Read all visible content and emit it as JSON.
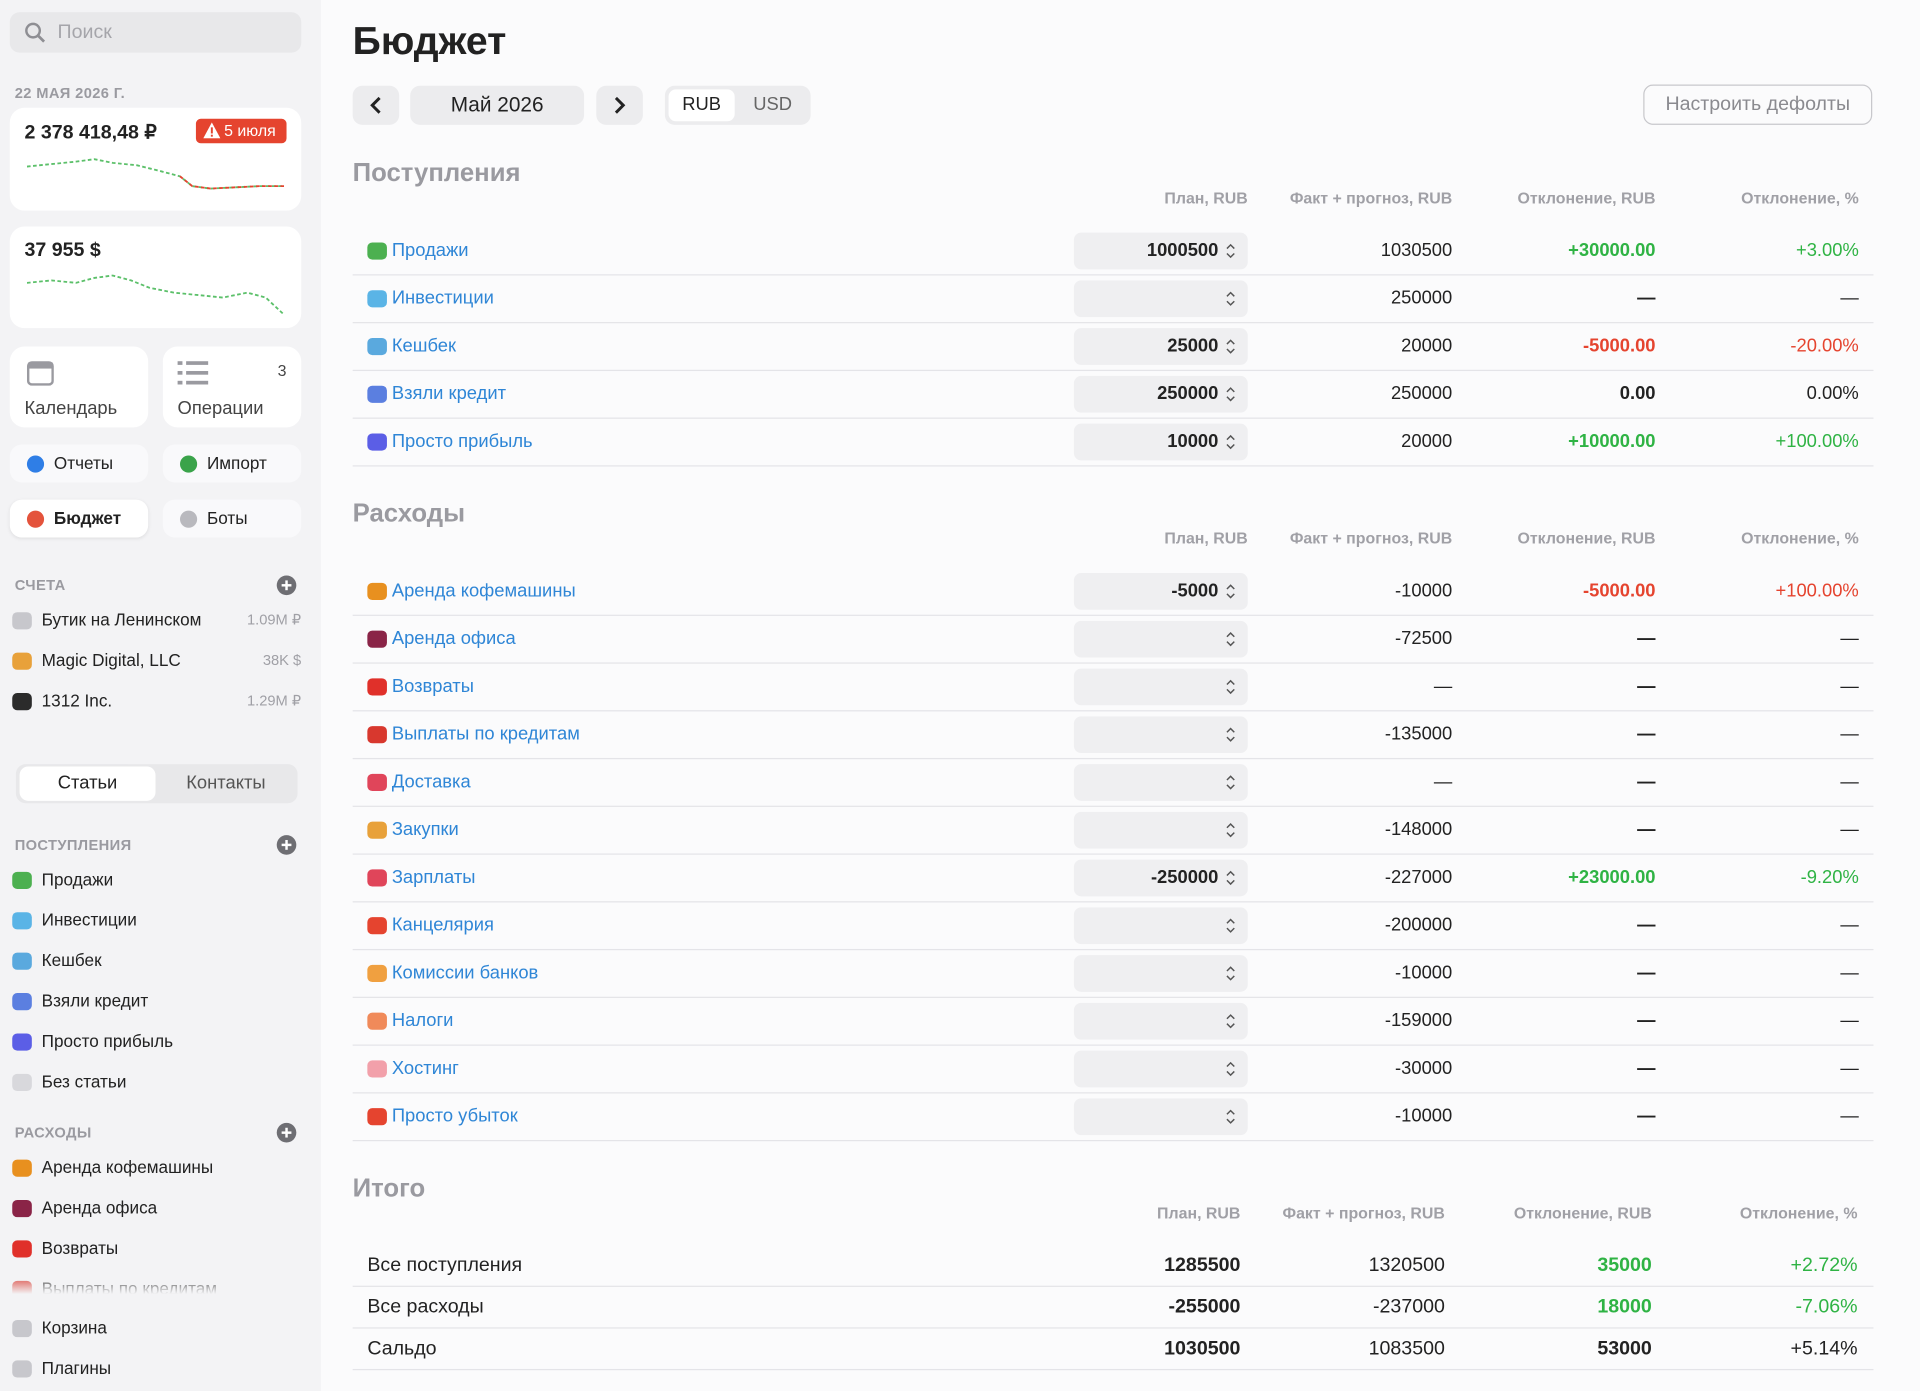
{
  "sidebar": {
    "search_placeholder": "Поиск",
    "date": "22 МАЯ 2026 Г.",
    "balance_rub": {
      "amount": "2 378 418,48 ₽",
      "badge": "5 июля"
    },
    "balance_usd": {
      "amount": "37 955 $"
    },
    "tiles": [
      {
        "label": "Календарь"
      },
      {
        "label": "Операции",
        "count": 3
      }
    ],
    "buttons": [
      {
        "label": "Отчеты",
        "color": "#2f7ee6"
      },
      {
        "label": "Импорт",
        "color": "#3aa34a"
      },
      {
        "label": "Бюджет",
        "color": "#e4533c",
        "active": true
      },
      {
        "label": "Боты",
        "color": "#b9b9be"
      }
    ],
    "accounts_title": "СЧЕТА",
    "accounts": [
      {
        "name": "Бутик на Ленинском",
        "amount": "1.09M ₽",
        "color": "#c7c7cc"
      },
      {
        "name": "Magic Digital, LLC",
        "amount": "38K $",
        "color": "#e8a13a"
      },
      {
        "name": "1312 Inc.",
        "amount": "1.29M ₽",
        "color": "#2b2b2b"
      }
    ],
    "tabs": [
      "Статьи",
      "Контакты"
    ],
    "income_title": "ПОСТУПЛЕНИЯ",
    "income_items": [
      {
        "name": "Продажи",
        "color": "#4cb050"
      },
      {
        "name": "Инвестиции",
        "color": "#5ab4e6"
      },
      {
        "name": "Кешбек",
        "color": "#5aa9de"
      },
      {
        "name": "Взяли кредит",
        "color": "#5b7fe0"
      },
      {
        "name": "Просто прибыль",
        "color": "#5b5ee6"
      },
      {
        "name": "Без статьи",
        "color": "#d8d8dc"
      }
    ],
    "expense_title": "РАСХОДЫ",
    "expense_items": [
      {
        "name": "Аренда кофемашины",
        "color": "#e8901f"
      },
      {
        "name": "Аренда офиса",
        "color": "#8a2447"
      },
      {
        "name": "Возвраты",
        "color": "#e0302a"
      },
      {
        "name": "Выплаты по кредитам",
        "color": "#d8382e"
      }
    ],
    "footer": [
      {
        "name": "Корзина",
        "color": "#c7c7cc"
      },
      {
        "name": "Плагины",
        "color": "#c7c7cc"
      }
    ]
  },
  "main": {
    "title": "Бюджет",
    "month": "Май 2026",
    "currencies": [
      "RUB",
      "USD"
    ],
    "defaults_button": "Настроить дефолты",
    "income": {
      "title": "Поступления",
      "headers": [
        "План, RUB",
        "Факт + прогноз, RUB",
        "Отклонение, RUB",
        "Отклонение, %"
      ],
      "rows": [
        {
          "name": "Продажи",
          "color": "#4cb050",
          "plan": 1000500,
          "fact": 1030500,
          "dev": "+30000.00",
          "dev_pct": "+3.00%",
          "dev_color": "#2fb344"
        },
        {
          "name": "Инвестиции",
          "color": "#5ab4e6",
          "plan": null,
          "fact": 250000,
          "dev": "—",
          "dev_pct": "—",
          "dev_color": "#222222"
        },
        {
          "name": "Кешбек",
          "color": "#5aa9de",
          "plan": 25000,
          "fact": 20000,
          "dev": "-5000.00",
          "dev_pct": "-20.00%",
          "dev_color": "#e5442f"
        },
        {
          "name": "Взяли кредит",
          "color": "#5b7fe0",
          "plan": 250000,
          "fact": 250000,
          "dev": "0.00",
          "dev_pct": "0.00%",
          "dev_color": "#222222"
        },
        {
          "name": "Просто прибыль",
          "color": "#5b5ee6",
          "plan": 10000,
          "fact": 20000,
          "dev": "+10000.00",
          "dev_pct": "+100.00%",
          "dev_color": "#2fb344"
        }
      ]
    },
    "expenses": {
      "title": "Расходы",
      "headers": [
        "План, RUB",
        "Факт + прогноз, RUB",
        "Отклонение, RUB",
        "Отклонение, %"
      ],
      "rows": [
        {
          "name": "Аренда кофемашины",
          "color": "#e8901f",
          "plan": -5000,
          "fact": -10000,
          "dev": "-5000.00",
          "dev_pct": "+100.00%",
          "dev_color": "#e5442f"
        },
        {
          "name": "Аренда офиса",
          "color": "#8a2447",
          "plan": null,
          "fact": -72500,
          "dev": "—",
          "dev_pct": "—",
          "dev_color": "#222222"
        },
        {
          "name": "Возвраты",
          "color": "#e0302a",
          "plan": null,
          "fact": "—",
          "dev": "—",
          "dev_pct": "—",
          "dev_color": "#222222"
        },
        {
          "name": "Выплаты по кредитам",
          "color": "#d8382e",
          "plan": null,
          "fact": -135000,
          "dev": "—",
          "dev_pct": "—",
          "dev_color": "#222222"
        },
        {
          "name": "Доставка",
          "color": "#e0455a",
          "plan": null,
          "fact": "—",
          "dev": "—",
          "dev_pct": "—",
          "dev_color": "#222222"
        },
        {
          "name": "Закупки",
          "color": "#e8a13a",
          "plan": null,
          "fact": -148000,
          "dev": "—",
          "dev_pct": "—",
          "dev_color": "#222222"
        },
        {
          "name": "Зарплаты",
          "color": "#e0455a",
          "plan": -250000,
          "fact": -227000,
          "dev": "+23000.00",
          "dev_pct": "-9.20%",
          "dev_color": "#2fb344"
        },
        {
          "name": "Канцелярия",
          "color": "#e5442f",
          "plan": null,
          "fact": -200000,
          "dev": "—",
          "dev_pct": "—",
          "dev_color": "#222222"
        },
        {
          "name": "Комиссии банков",
          "color": "#f0a040",
          "plan": null,
          "fact": -10000,
          "dev": "—",
          "dev_pct": "—",
          "dev_color": "#222222"
        },
        {
          "name": "Налоги",
          "color": "#f08a5a",
          "plan": null,
          "fact": -159000,
          "dev": "—",
          "dev_pct": "—",
          "dev_color": "#222222"
        },
        {
          "name": "Хостинг",
          "color": "#f2a0aa",
          "plan": null,
          "fact": -30000,
          "dev": "—",
          "dev_pct": "—",
          "dev_color": "#222222"
        },
        {
          "name": "Просто убыток",
          "color": "#e5442f",
          "plan": null,
          "fact": -10000,
          "dev": "—",
          "dev_pct": "—",
          "dev_color": "#222222"
        }
      ]
    },
    "totals": {
      "title": "Итого",
      "headers": [
        "План, RUB",
        "Факт + прогноз, RUB",
        "Отклонение, RUB",
        "Отклонение, %"
      ],
      "rows": [
        {
          "name": "Все поступления",
          "plan": 1285500,
          "fact": 1320500,
          "dev": 35000,
          "dev_pct": "+2.72%",
          "dev_color": "#2fb344"
        },
        {
          "name": "Все расходы",
          "plan": -255000,
          "fact": -237000,
          "dev": 18000,
          "dev_pct": "-7.06%",
          "dev_color": "#2fb344"
        },
        {
          "name": "Сальдо",
          "plan": 1030500,
          "fact": 1083500,
          "dev": 53000,
          "dev_pct": "+5.14%",
          "dev_color": "#222222"
        }
      ]
    }
  }
}
